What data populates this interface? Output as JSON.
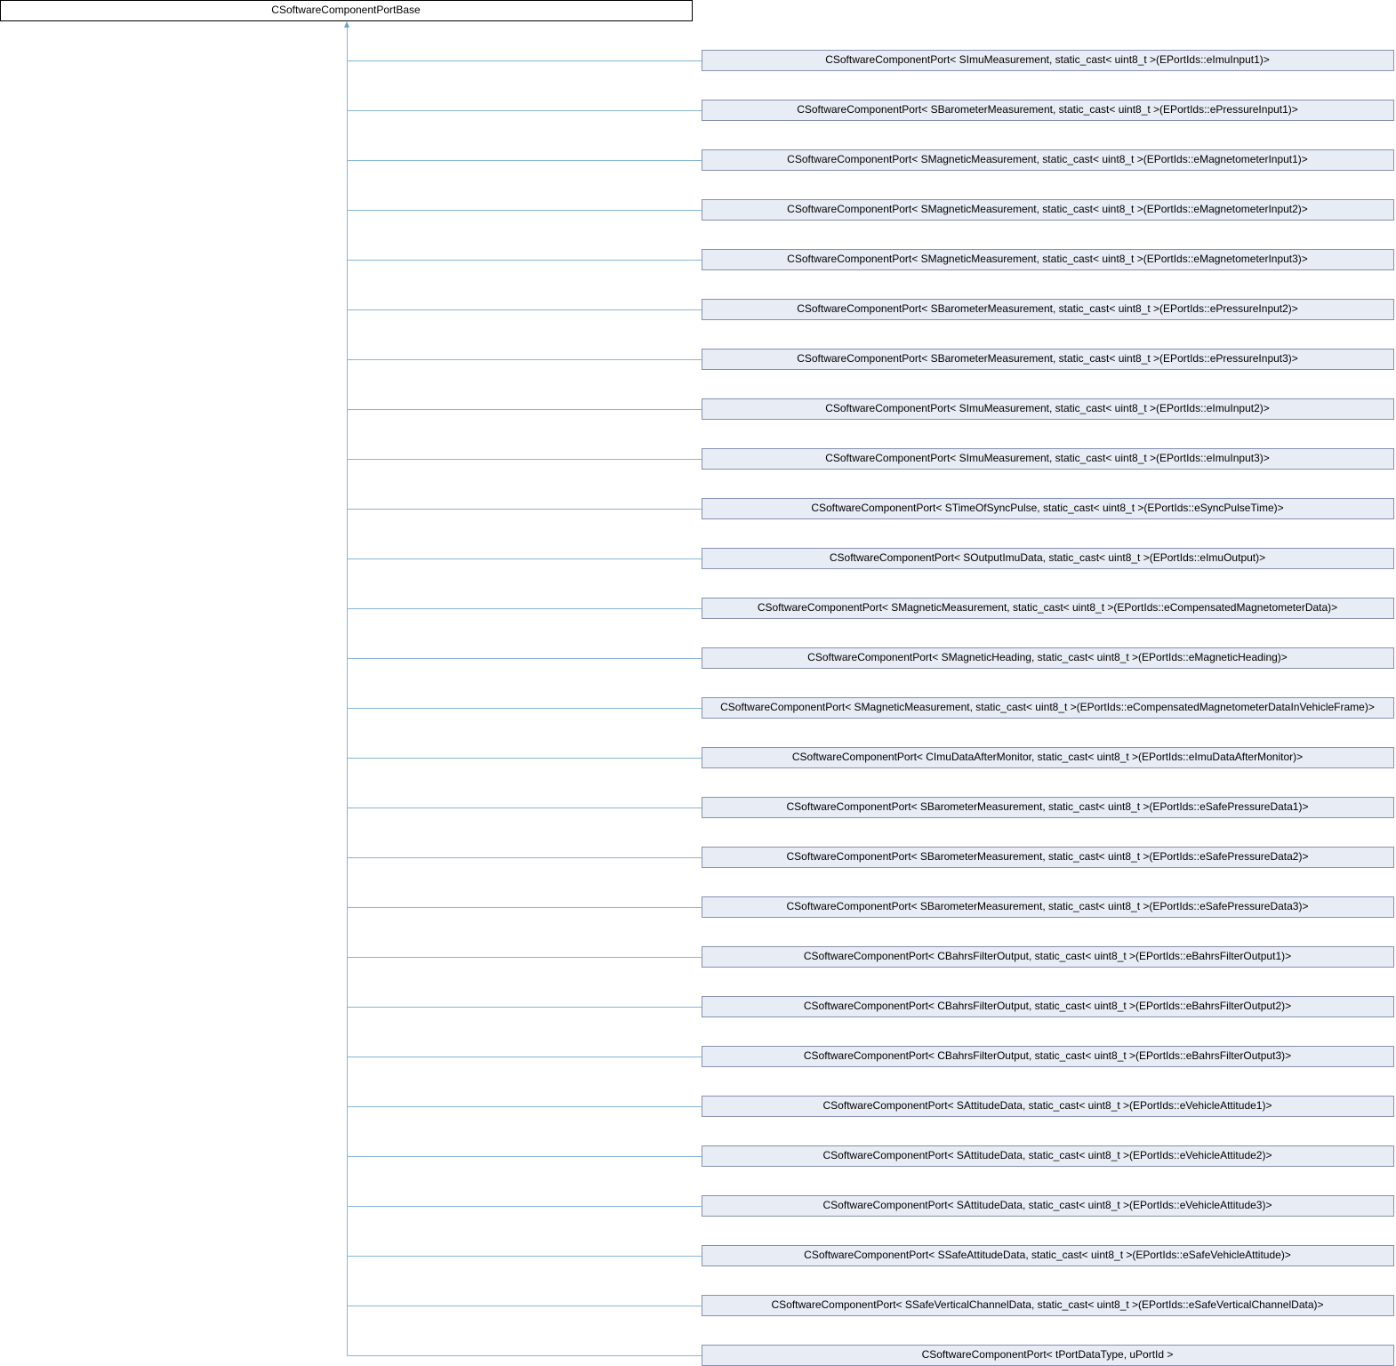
{
  "root": {
    "label": "CSoftwareComponentPortBase"
  },
  "children": [
    {
      "label": "CSoftwareComponentPort< SImuMeasurement, static_cast< uint8_t >(EPortIds::eImuInput1)>"
    },
    {
      "label": "CSoftwareComponentPort< SBarometerMeasurement, static_cast< uint8_t >(EPortIds::ePressureInput1)>"
    },
    {
      "label": "CSoftwareComponentPort< SMagneticMeasurement, static_cast< uint8_t >(EPortIds::eMagnetometerInput1)>"
    },
    {
      "label": "CSoftwareComponentPort< SMagneticMeasurement, static_cast< uint8_t >(EPortIds::eMagnetometerInput2)>"
    },
    {
      "label": "CSoftwareComponentPort< SMagneticMeasurement, static_cast< uint8_t >(EPortIds::eMagnetometerInput3)>"
    },
    {
      "label": "CSoftwareComponentPort< SBarometerMeasurement, static_cast< uint8_t >(EPortIds::ePressureInput2)>"
    },
    {
      "label": "CSoftwareComponentPort< SBarometerMeasurement, static_cast< uint8_t >(EPortIds::ePressureInput3)>"
    },
    {
      "label": "CSoftwareComponentPort< SImuMeasurement, static_cast< uint8_t >(EPortIds::eImuInput2)>"
    },
    {
      "label": "CSoftwareComponentPort< SImuMeasurement, static_cast< uint8_t >(EPortIds::eImuInput3)>"
    },
    {
      "label": "CSoftwareComponentPort< STimeOfSyncPulse, static_cast< uint8_t >(EPortIds::eSyncPulseTime)>"
    },
    {
      "label": "CSoftwareComponentPort< SOutputImuData, static_cast< uint8_t >(EPortIds::eImuOutput)>"
    },
    {
      "label": "CSoftwareComponentPort< SMagneticMeasurement, static_cast< uint8_t >(EPortIds::eCompensatedMagnetometerData)>"
    },
    {
      "label": "CSoftwareComponentPort< SMagneticHeading, static_cast< uint8_t >(EPortIds::eMagneticHeading)>"
    },
    {
      "label": "CSoftwareComponentPort< SMagneticMeasurement, static_cast< uint8_t >(EPortIds::eCompensatedMagnetometerDataInVehicleFrame)>"
    },
    {
      "label": "CSoftwareComponentPort< CImuDataAfterMonitor, static_cast< uint8_t >(EPortIds::eImuDataAfterMonitor)>"
    },
    {
      "label": "CSoftwareComponentPort< SBarometerMeasurement, static_cast< uint8_t >(EPortIds::eSafePressureData1)>"
    },
    {
      "label": "CSoftwareComponentPort< SBarometerMeasurement, static_cast< uint8_t >(EPortIds::eSafePressureData2)>"
    },
    {
      "label": "CSoftwareComponentPort< SBarometerMeasurement, static_cast< uint8_t >(EPortIds::eSafePressureData3)>"
    },
    {
      "label": "CSoftwareComponentPort< CBahrsFilterOutput, static_cast< uint8_t >(EPortIds::eBahrsFilterOutput1)>"
    },
    {
      "label": "CSoftwareComponentPort< CBahrsFilterOutput, static_cast< uint8_t >(EPortIds::eBahrsFilterOutput2)>"
    },
    {
      "label": "CSoftwareComponentPort< CBahrsFilterOutput, static_cast< uint8_t >(EPortIds::eBahrsFilterOutput3)>"
    },
    {
      "label": "CSoftwareComponentPort< SAttitudeData, static_cast< uint8_t >(EPortIds::eVehicleAttitude1)>"
    },
    {
      "label": "CSoftwareComponentPort< SAttitudeData, static_cast< uint8_t >(EPortIds::eVehicleAttitude2)>"
    },
    {
      "label": "CSoftwareComponentPort< SAttitudeData, static_cast< uint8_t >(EPortIds::eVehicleAttitude3)>"
    },
    {
      "label": "CSoftwareComponentPort< SSafeAttitudeData, static_cast< uint8_t >(EPortIds::eSafeVehicleAttitude)>"
    },
    {
      "label": "CSoftwareComponentPort< SSafeVerticalChannelData, static_cast< uint8_t >(EPortIds::eSafeVerticalChannelData)>"
    },
    {
      "label": "CSoftwareComponentPort< tPortDataType, uPortId >"
    }
  ]
}
